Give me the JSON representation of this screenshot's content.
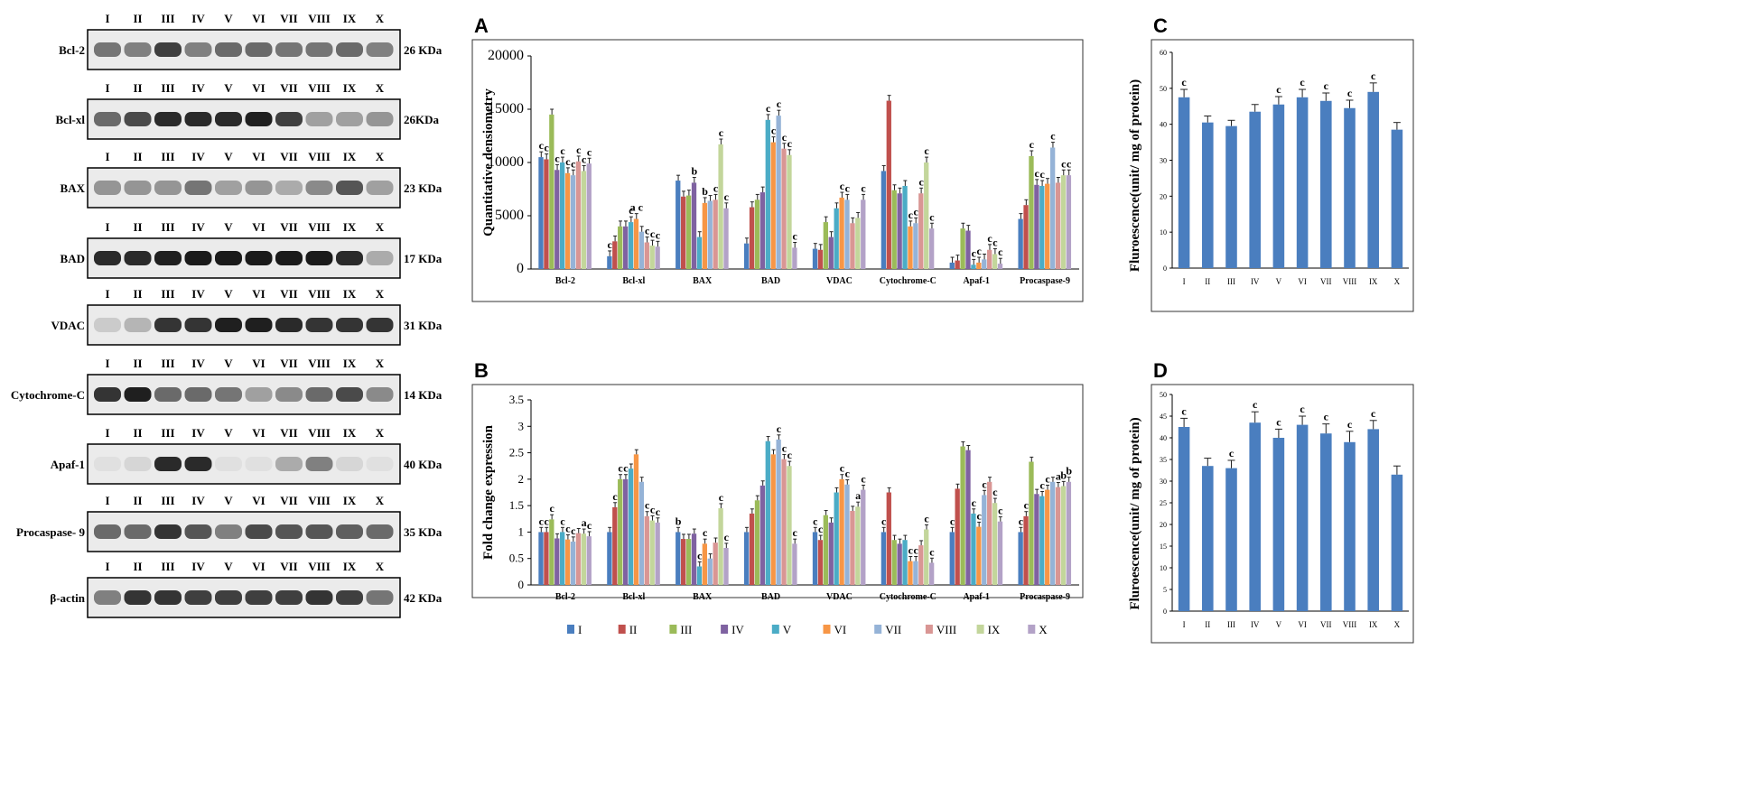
{
  "blots": {
    "lanes": [
      "I",
      "II",
      "III",
      "IV",
      "V",
      "VI",
      "VII",
      "VIII",
      "IX",
      "X"
    ],
    "proteins": [
      {
        "name": "Bcl-2",
        "size": "26 KDa",
        "intensity": [
          0.55,
          0.5,
          0.8,
          0.5,
          0.6,
          0.6,
          0.55,
          0.55,
          0.6,
          0.5
        ]
      },
      {
        "name": "Bcl-xl",
        "size": "26KDa",
        "intensity": [
          0.6,
          0.75,
          0.9,
          0.9,
          0.9,
          0.95,
          0.8,
          0.35,
          0.35,
          0.4
        ]
      },
      {
        "name": "BAX",
        "size": "23 KDa",
        "intensity": [
          0.4,
          0.4,
          0.4,
          0.55,
          0.35,
          0.4,
          0.3,
          0.45,
          0.7,
          0.35
        ]
      },
      {
        "name": "BAD",
        "size": "17 KDa",
        "intensity": [
          0.9,
          0.9,
          0.95,
          0.97,
          0.97,
          0.97,
          0.97,
          0.97,
          0.9,
          0.3
        ]
      },
      {
        "name": "VDAC",
        "size": "31 KDa",
        "intensity": [
          0.15,
          0.25,
          0.85,
          0.85,
          0.95,
          0.95,
          0.9,
          0.85,
          0.85,
          0.85
        ]
      },
      {
        "name": "Cytochrome-C",
        "size": "14 KDa",
        "intensity": [
          0.85,
          0.95,
          0.6,
          0.6,
          0.55,
          0.35,
          0.45,
          0.6,
          0.75,
          0.45
        ]
      },
      {
        "name": "Apaf-1",
        "size": "40 KDa",
        "intensity": [
          0.05,
          0.1,
          0.9,
          0.9,
          0.05,
          0.05,
          0.3,
          0.5,
          0.1,
          0.05
        ]
      },
      {
        "name": "Procaspase- 9",
        "size": "35 KDa",
        "intensity": [
          0.6,
          0.6,
          0.85,
          0.7,
          0.5,
          0.75,
          0.7,
          0.7,
          0.65,
          0.6
        ]
      },
      {
        "name": "β-actin",
        "size": "42 KDa",
        "intensity": [
          0.5,
          0.85,
          0.85,
          0.8,
          0.8,
          0.8,
          0.8,
          0.85,
          0.8,
          0.55
        ]
      }
    ]
  },
  "chart_data": [
    {
      "id": "A",
      "panel_label": "A",
      "type": "bar",
      "title": "",
      "ylabel": "Quantitative densiometry",
      "xlabel": "",
      "ylim": [
        0,
        20000
      ],
      "yticks": [
        0,
        5000,
        10000,
        15000,
        20000
      ],
      "categories": [
        "Bcl-2",
        "Bcl-xl",
        "BAX",
        "BAD",
        "VDAC",
        "Cytochrome-C",
        "Apaf-1",
        "Procaspase-9"
      ],
      "series": [
        {
          "name": "I",
          "values": [
            10500,
            1200,
            8300,
            2400,
            1900,
            9200,
            600,
            4700
          ]
        },
        {
          "name": "II",
          "values": [
            10300,
            2600,
            6800,
            5800,
            1800,
            15800,
            800,
            6000
          ]
        },
        {
          "name": "III",
          "values": [
            14500,
            4000,
            6900,
            6500,
            4400,
            7400,
            3800,
            10600
          ]
        },
        {
          "name": "IV",
          "values": [
            9300,
            4000,
            8100,
            7200,
            3000,
            7100,
            3600,
            7900
          ]
        },
        {
          "name": "V",
          "values": [
            10000,
            4400,
            3000,
            14000,
            5700,
            7800,
            400,
            7800
          ]
        },
        {
          "name": "VI",
          "values": [
            9000,
            4700,
            6200,
            11900,
            6700,
            4000,
            600,
            8000
          ]
        },
        {
          "name": "VII",
          "values": [
            8800,
            3500,
            6400,
            14400,
            6500,
            4300,
            900,
            11400
          ]
        },
        {
          "name": "VIII",
          "values": [
            10100,
            2500,
            6500,
            11300,
            4300,
            7100,
            1800,
            8100
          ]
        },
        {
          "name": "IX",
          "values": [
            9200,
            2200,
            11700,
            10700,
            4800,
            10000,
            1400,
            8800
          ]
        },
        {
          "name": "X",
          "values": [
            9900,
            2100,
            5700,
            2000,
            6500,
            3800,
            500,
            8800
          ]
        }
      ],
      "colors": [
        "#4a7ebf",
        "#c0504d",
        "#9bbb59",
        "#7f62a1",
        "#4bacc6",
        "#f79646",
        "#95b3d7",
        "#d99694",
        "#c3d69b",
        "#b3a2c7"
      ]
    },
    {
      "id": "B",
      "panel_label": "B",
      "type": "bar",
      "title": "",
      "ylabel": "Fold change expression",
      "xlabel": "",
      "ylim": [
        0,
        3.5
      ],
      "yticks": [
        0,
        0.5,
        1,
        1.5,
        2,
        2.5,
        3,
        3.5
      ],
      "ytick_labels": [
        "0",
        "0.5",
        "1",
        "1.5",
        "2",
        "2.5",
        "3",
        "3.5"
      ],
      "categories": [
        "Bcl-2",
        "Bcl-xl",
        "BAX",
        "BAD",
        "VDAC",
        "Cytochrome-C",
        "Apaf-1",
        "Procaspase-9"
      ],
      "series": [
        {
          "name": "I",
          "values": [
            1.0,
            1.0,
            1.0,
            1.0,
            1.0,
            1.0,
            1.0,
            1.0
          ]
        },
        {
          "name": "II",
          "values": [
            1.0,
            1.47,
            0.87,
            1.35,
            0.85,
            1.75,
            1.82,
            1.3
          ]
        },
        {
          "name": "III",
          "values": [
            1.24,
            2.0,
            0.87,
            1.6,
            1.32,
            0.85,
            2.62,
            2.33
          ]
        },
        {
          "name": "IV",
          "values": [
            0.88,
            2.0,
            0.97,
            1.88,
            1.18,
            0.78,
            2.55,
            1.72
          ]
        },
        {
          "name": "V",
          "values": [
            1.0,
            2.2,
            0.35,
            2.72,
            1.75,
            0.85,
            1.35,
            1.68
          ]
        },
        {
          "name": "VI",
          "values": [
            0.86,
            2.47,
            0.78,
            2.47,
            2.0,
            0.45,
            1.1,
            1.8
          ]
        },
        {
          "name": "VII",
          "values": [
            0.82,
            1.95,
            0.5,
            2.75,
            1.9,
            0.45,
            1.7,
            1.95
          ]
        },
        {
          "name": "VIII",
          "values": [
            0.98,
            1.3,
            0.8,
            2.38,
            1.4,
            0.75,
            1.95,
            1.85
          ]
        },
        {
          "name": "IX",
          "values": [
            0.97,
            1.22,
            1.45,
            2.25,
            1.48,
            1.05,
            1.55,
            1.87
          ]
        },
        {
          "name": "X",
          "values": [
            0.92,
            1.18,
            0.7,
            0.78,
            1.8,
            0.42,
            1.2,
            1.95
          ]
        }
      ],
      "colors": [
        "#4a7ebf",
        "#c0504d",
        "#9bbb59",
        "#7f62a1",
        "#4bacc6",
        "#f79646",
        "#95b3d7",
        "#d99694",
        "#c3d69b",
        "#b3a2c7"
      ],
      "legend": [
        "I",
        "II",
        "III",
        "IV",
        "V",
        "VI",
        "VII",
        "VIII",
        "IX",
        "X"
      ]
    },
    {
      "id": "C",
      "panel_label": "C",
      "type": "bar",
      "title": "",
      "ylabel": "Fluroescence(unit/ mg of protein)",
      "xlabel": "",
      "ylim": [
        0,
        60
      ],
      "yticks": [
        0,
        10,
        20,
        30,
        40,
        50,
        60
      ],
      "categories": [
        "I",
        "II",
        "III",
        "IV",
        "V",
        "VI",
        "VII",
        "VIII",
        "IX",
        "X"
      ],
      "values": [
        47.5,
        40.5,
        39.5,
        43.5,
        45.5,
        47.5,
        46.5,
        44.5,
        49,
        38.5
      ],
      "errors": [
        2.2,
        1.8,
        1.6,
        2.0,
        2.2,
        2.2,
        2.2,
        2.2,
        2.5,
        2.0
      ],
      "annotations": [
        "c",
        "",
        "",
        "",
        "c",
        "c",
        "c",
        "c",
        "c",
        ""
      ],
      "color": "#4a7ebf"
    },
    {
      "id": "D",
      "panel_label": "D",
      "type": "bar",
      "title": "",
      "ylabel": "Fluroescence(unit/ mg of protein)",
      "xlabel": "",
      "ylim": [
        0,
        50
      ],
      "yticks": [
        0,
        5,
        10,
        15,
        20,
        25,
        30,
        35,
        40,
        45,
        50
      ],
      "categories": [
        "I",
        "II",
        "III",
        "IV",
        "V",
        "VI",
        "VII",
        "VIII",
        "IX",
        "X"
      ],
      "values": [
        42.5,
        33.5,
        33,
        43.5,
        40,
        43,
        41,
        39,
        42,
        31.5
      ],
      "errors": [
        2.0,
        1.8,
        1.8,
        2.5,
        2.0,
        2.0,
        2.2,
        2.5,
        2.0,
        2.0
      ],
      "annotations": [
        "c",
        "",
        "c",
        "c",
        "c",
        "c",
        "c",
        "c",
        "c",
        ""
      ],
      "color": "#4a7ebf"
    }
  ],
  "chartA_annotations": [
    [
      "c",
      "c",
      "",
      "c",
      "c",
      "c",
      "c",
      "c",
      "c",
      "c"
    ],
    [
      "c",
      "",
      "",
      "",
      "c",
      "a c",
      "",
      "c",
      "c",
      "c"
    ],
    [
      "",
      "",
      "",
      "b",
      "",
      "b",
      "",
      "c",
      "c",
      "c"
    ],
    [
      "",
      "",
      "",
      "",
      "c",
      "c",
      "c",
      "c",
      "c",
      "c"
    ],
    [
      "",
      "",
      "",
      "",
      "",
      "c",
      "c",
      "",
      "",
      "c"
    ],
    [
      "",
      "",
      "",
      "",
      "",
      "c",
      "c",
      "c",
      "c",
      "c"
    ],
    [
      "",
      "",
      "",
      "",
      "c",
      "c",
      "",
      "c",
      "c",
      "c"
    ],
    [
      "",
      "",
      "c",
      "c",
      "c",
      "",
      "c",
      "",
      "c",
      "c"
    ]
  ],
  "chartB_annotations": [
    [
      "c",
      "c",
      "c",
      "",
      "c",
      "c",
      "c",
      "",
      "a",
      "c"
    ],
    [
      "",
      "c",
      "c",
      "c",
      "",
      "",
      "",
      "c",
      "c",
      "c"
    ],
    [
      "b",
      "",
      "",
      "",
      "c",
      "c",
      "",
      "",
      "c",
      "c"
    ],
    [
      "",
      "",
      "",
      "",
      "",
      "",
      "c",
      "c",
      "c",
      "c"
    ],
    [
      "c",
      "c",
      "",
      "",
      "",
      "c",
      "c",
      "",
      "a",
      "c"
    ],
    [
      "c",
      "",
      "",
      "",
      "",
      "c",
      "c",
      "",
      "c",
      "c"
    ],
    [
      "c",
      "",
      "",
      "",
      "c",
      "c",
      "c",
      "",
      "c",
      "c"
    ],
    [
      "c",
      "c",
      "",
      "",
      "c",
      "c",
      "",
      "a",
      "b",
      "b"
    ]
  ]
}
